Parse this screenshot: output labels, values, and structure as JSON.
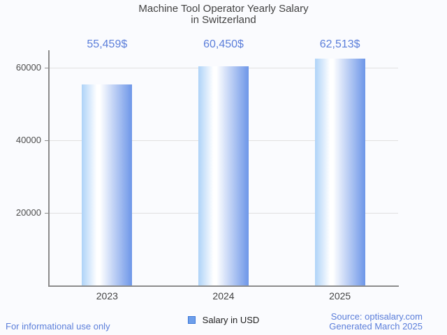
{
  "chart_data": {
    "type": "bar",
    "title": "Machine Tool Operator Yearly Salary in Switzerland",
    "title_lines": [
      "Machine Tool Operator Yearly Salary",
      "in Switzerland"
    ],
    "categories": [
      "2023",
      "2024",
      "2025"
    ],
    "values": [
      55459,
      60450,
      62513
    ],
    "value_labels": [
      "55,459$",
      "60,450$",
      "62,513$"
    ],
    "series": [
      {
        "name": "Salary in USD",
        "values": [
          55459,
          60450,
          62513
        ]
      }
    ],
    "xlabel": "",
    "ylabel": "",
    "y_ticks": [
      20000,
      40000,
      60000
    ],
    "y_tick_labels": [
      "20000",
      "40000",
      "60000"
    ],
    "ylim": [
      0,
      65000
    ],
    "grid": true,
    "legend_position": "bottom"
  },
  "legend": {
    "label": "Salary in USD"
  },
  "footer": {
    "left_note": "For informational use only",
    "source": "Source: optisalary.com",
    "generated": "Generated March 2025"
  },
  "colors": {
    "background": "#FAFBFE",
    "title_text": "#424242",
    "axis_line": "#8C8C8C",
    "gridline": "#E0E0E0",
    "y_tick_label": "#4D4D4D",
    "x_tick_label": "#424242",
    "value_label_text": "#5B7EDA",
    "footer_text": "#5B7EDA",
    "legend_text": "#212121",
    "legend_swatch_fill": "#6D9EEB",
    "legend_swatch_border": "#3C78D8",
    "bar_gradient_left": "#AED3F8",
    "bar_gradient_mid": "#FFFFFF",
    "bar_gradient_right": "#6D96E8"
  }
}
